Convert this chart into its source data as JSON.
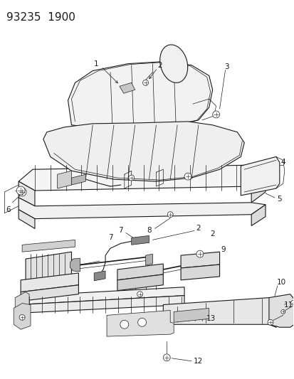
{
  "title_code": "93235  1900",
  "bg_color": "#ffffff",
  "line_color": "#1a1a1a",
  "title_fontsize": 11,
  "label_fontsize": 7.5,
  "fig_width": 4.14,
  "fig_height": 5.33,
  "dpi": 100
}
